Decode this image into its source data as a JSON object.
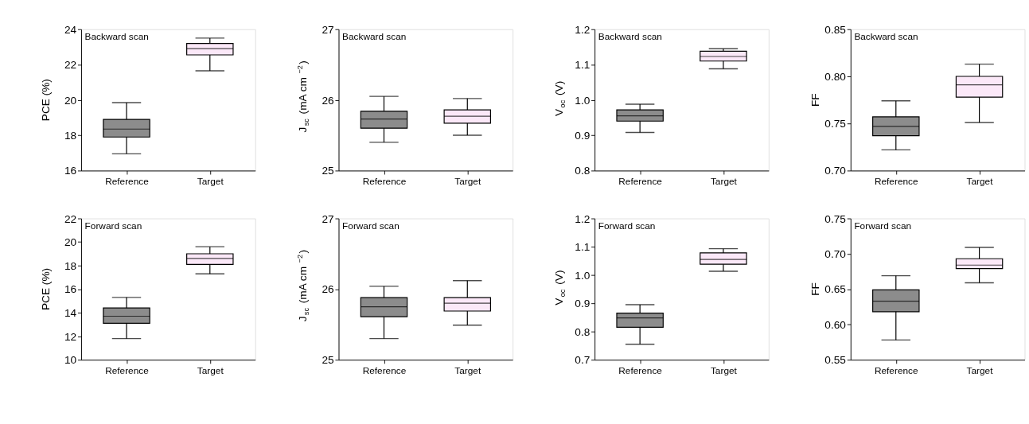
{
  "chart_data": [
    {
      "type": "box",
      "categories": [
        "Reference",
        "Target"
      ],
      "ylabel": "PCE (%)",
      "annotations": [
        "Backward scan"
      ],
      "colors": [
        "#8c8c8c",
        "#fbe8f8"
      ],
      "ylim": [
        16,
        24
      ],
      "yticks": [
        16,
        18,
        20,
        22,
        24
      ],
      "grid": false,
      "boxes": [
        {
          "low": 16.95,
          "q1": 17.9,
          "median": 18.35,
          "q3": 18.9,
          "high": 19.85
        },
        {
          "low": 21.65,
          "q1": 22.55,
          "median": 22.9,
          "q3": 23.2,
          "high": 23.5
        }
      ]
    },
    {
      "type": "box",
      "categories": [
        "Reference",
        "Target"
      ],
      "ylabel": "J$_{sc}$ (mA cm$^{−2}$)",
      "annotations": [
        "Backward scan"
      ],
      "colors": [
        "#8c8c8c",
        "#fbe8f8"
      ],
      "ylim": [
        25,
        27
      ],
      "yticks": [
        25,
        26,
        27
      ],
      "grid": false,
      "boxes": [
        {
          "low": 25.4,
          "q1": 25.6,
          "median": 25.73,
          "q3": 25.84,
          "high": 26.05
        },
        {
          "low": 25.5,
          "q1": 25.67,
          "median": 25.77,
          "q3": 25.86,
          "high": 26.02
        }
      ]
    },
    {
      "type": "box",
      "categories": [
        "Reference",
        "Target"
      ],
      "ylabel": "V$_{oc}$ (V)",
      "annotations": [
        "Backward scan"
      ],
      "colors": [
        "#8c8c8c",
        "#fbe8f8"
      ],
      "ylim": [
        0.8,
        1.2
      ],
      "yticks": [
        0.8,
        0.9,
        {
          "value": 1.0,
          "label": "1.0"
        },
        1.1,
        1.2
      ],
      "grid": false,
      "boxes": [
        {
          "low": 0.908,
          "q1": 0.94,
          "median": 0.955,
          "q3": 0.972,
          "high": 0.988
        },
        {
          "low": 1.088,
          "q1": 1.11,
          "median": 1.123,
          "q3": 1.138,
          "high": 1.145
        }
      ]
    },
    {
      "type": "box",
      "categories": [
        "Reference",
        "Target"
      ],
      "ylabel": "FF",
      "annotations": [
        "Backward scan"
      ],
      "colors": [
        "#8c8c8c",
        "#fbe8f8"
      ],
      "ylim": [
        0.7,
        0.85
      ],
      "yticks": [
        {
          "value": 0.7,
          "label": "0.70"
        },
        0.75,
        {
          "value": 0.8,
          "label": "0.80"
        },
        0.85
      ],
      "grid": false,
      "boxes": [
        {
          "low": 0.722,
          "q1": 0.737,
          "median": 0.747,
          "q3": 0.757,
          "high": 0.774
        },
        {
          "low": 0.751,
          "q1": 0.778,
          "median": 0.791,
          "q3": 0.8,
          "high": 0.813
        }
      ]
    },
    {
      "type": "box",
      "categories": [
        "Reference",
        "Target"
      ],
      "ylabel": "PCE (%)",
      "annotations": [
        "Forward scan"
      ],
      "colors": [
        "#8c8c8c",
        "#fbe8f8"
      ],
      "ylim": [
        10,
        22
      ],
      "yticks": [
        10,
        12,
        14,
        16,
        18,
        20,
        22
      ],
      "grid": false,
      "boxes": [
        {
          "low": 11.8,
          "q1": 13.1,
          "median": 13.7,
          "q3": 14.4,
          "high": 15.3
        },
        {
          "low": 17.3,
          "q1": 18.1,
          "median": 18.6,
          "q3": 19.0,
          "high": 19.6
        }
      ]
    },
    {
      "type": "box",
      "categories": [
        "Reference",
        "Target"
      ],
      "ylabel": "J$_{sc}$ (mA cm$^{−2}$)",
      "annotations": [
        "Forward scan"
      ],
      "colors": [
        "#8c8c8c",
        "#fbe8f8"
      ],
      "ylim": [
        25,
        27
      ],
      "yticks": [
        25,
        26,
        27
      ],
      "grid": false,
      "boxes": [
        {
          "low": 25.3,
          "q1": 25.61,
          "median": 25.75,
          "q3": 25.88,
          "high": 26.04
        },
        {
          "low": 25.49,
          "q1": 25.69,
          "median": 25.8,
          "q3": 25.88,
          "high": 26.12
        }
      ]
    },
    {
      "type": "box",
      "categories": [
        "Reference",
        "Target"
      ],
      "ylabel": "V$_{oc}$ (V)",
      "annotations": [
        "Forward scan"
      ],
      "colors": [
        "#8c8c8c",
        "#fbe8f8"
      ],
      "ylim": [
        0.7,
        1.2
      ],
      "yticks": [
        0.7,
        0.8,
        0.9,
        {
          "value": 1.0,
          "label": "1.0"
        },
        1.1,
        1.2
      ],
      "grid": false,
      "boxes": [
        {
          "low": 0.755,
          "q1": 0.815,
          "median": 0.848,
          "q3": 0.865,
          "high": 0.895
        },
        {
          "low": 1.013,
          "q1": 1.038,
          "median": 1.055,
          "q3": 1.078,
          "high": 1.093
        }
      ]
    },
    {
      "type": "box",
      "categories": [
        "Reference",
        "Target"
      ],
      "ylabel": "FF",
      "annotations": [
        "Forward scan"
      ],
      "colors": [
        "#8c8c8c",
        "#fbe8f8"
      ],
      "ylim": [
        0.55,
        0.75
      ],
      "yticks": [
        0.55,
        {
          "value": 0.6,
          "label": "0.60"
        },
        0.65,
        {
          "value": 0.7,
          "label": "0.70"
        },
        0.75
      ],
      "grid": false,
      "boxes": [
        {
          "low": 0.578,
          "q1": 0.618,
          "median": 0.633,
          "q3": 0.649,
          "high": 0.669
        },
        {
          "low": 0.659,
          "q1": 0.679,
          "median": 0.684,
          "q3": 0.693,
          "high": 0.709
        }
      ]
    }
  ]
}
